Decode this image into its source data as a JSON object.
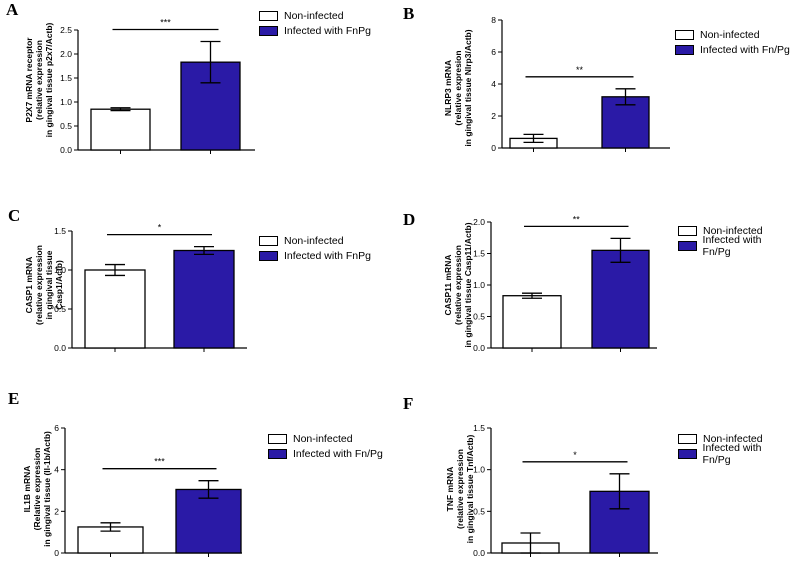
{
  "colors": {
    "non_infected": "#ffffff",
    "infected": "#2a1aa6",
    "axis": "#000000"
  },
  "chart_data": [
    {
      "panel": "A",
      "type": "bar",
      "categories": [
        "Non-infected",
        "Infected with FnPg"
      ],
      "values": [
        0.85,
        1.83
      ],
      "errors": [
        0.03,
        0.43
      ],
      "ylim": [
        0,
        2.5
      ],
      "yticks": [
        "0.0",
        "0.5",
        "1.0",
        "1.5",
        "2.0",
        "2.5"
      ],
      "ylabel": [
        "P2X7 mRNA receptor",
        "(relative expression",
        "in gingival tissue p2x7/Actb)"
      ],
      "significance": "***",
      "legend": [
        "Non-infected",
        "Infected with FnPg"
      ]
    },
    {
      "panel": "B",
      "type": "bar",
      "categories": [
        "Non-infected",
        "Infected with Fn/Pg"
      ],
      "values": [
        0.6,
        3.2
      ],
      "errors": [
        0.25,
        0.5
      ],
      "ylim": [
        0,
        8
      ],
      "yticks": [
        "0",
        "2",
        "4",
        "6",
        "8"
      ],
      "ylabel": [
        "NLRP3 mRNA",
        "(relative expresion",
        "in gingival tissue Nlrp3/Actb)"
      ],
      "significance": "**",
      "legend": [
        "Non-infected",
        "Infected with Fn/Pg"
      ]
    },
    {
      "panel": "C",
      "type": "bar",
      "categories": [
        "Non-infected",
        "Infected with FnPg"
      ],
      "values": [
        1.0,
        1.25
      ],
      "errors": [
        0.07,
        0.05
      ],
      "ylim": [
        0,
        1.5
      ],
      "yticks": [
        "0.0",
        "0.5",
        "1.0",
        "1.5"
      ],
      "ylabel": [
        "CASP1 mRNA",
        "(relative expression",
        "in gingival tissue",
        "Casp1/Actb)"
      ],
      "significance": "*",
      "legend": [
        "Non-infected",
        "Infected with FnPg"
      ]
    },
    {
      "panel": "D",
      "type": "bar",
      "categories": [
        "Non-infected",
        "Infected with Fn/Pg"
      ],
      "values": [
        0.83,
        1.55
      ],
      "errors": [
        0.04,
        0.19
      ],
      "ylim": [
        0,
        2.0
      ],
      "yticks": [
        "0.0",
        "0.5",
        "1.0",
        "1.5",
        "2.0"
      ],
      "ylabel": [
        "CASP11 mRNA",
        "(relative expression",
        "in gingival tissue Casp11/Actb)"
      ],
      "significance": "**",
      "legend": [
        "Non-infected",
        "Infected with Fn/Pg"
      ]
    },
    {
      "panel": "E",
      "type": "bar",
      "categories": [
        "Non-infected",
        "Infected with Fn/Pg"
      ],
      "values": [
        1.25,
        3.05
      ],
      "errors": [
        0.2,
        0.42
      ],
      "ylim": [
        0,
        6
      ],
      "yticks": [
        "0",
        "2",
        "4",
        "6"
      ],
      "ylabel": [
        "IL1B mRNA",
        "(Relative expression",
        "in gingival tissue (Il-1b/Actb)"
      ],
      "significance": "***",
      "legend": [
        "Non-infected",
        "Infected with Fn/Pg"
      ]
    },
    {
      "panel": "F",
      "type": "bar",
      "categories": [
        "Non-infected",
        "Infected with Fn/Pg"
      ],
      "values": [
        0.12,
        0.74
      ],
      "errors": [
        0.12,
        0.21
      ],
      "ylim": [
        0,
        1.5
      ],
      "yticks": [
        "0.0",
        "0.5",
        "1.0",
        "1.5"
      ],
      "ylabel": [
        "TNF mRNA",
        "(relative expression",
        "in gingival tissue Tnf/Actb)"
      ],
      "significance": "*",
      "legend": [
        "Non-infected",
        "Infected with Fn/Pg"
      ]
    }
  ]
}
